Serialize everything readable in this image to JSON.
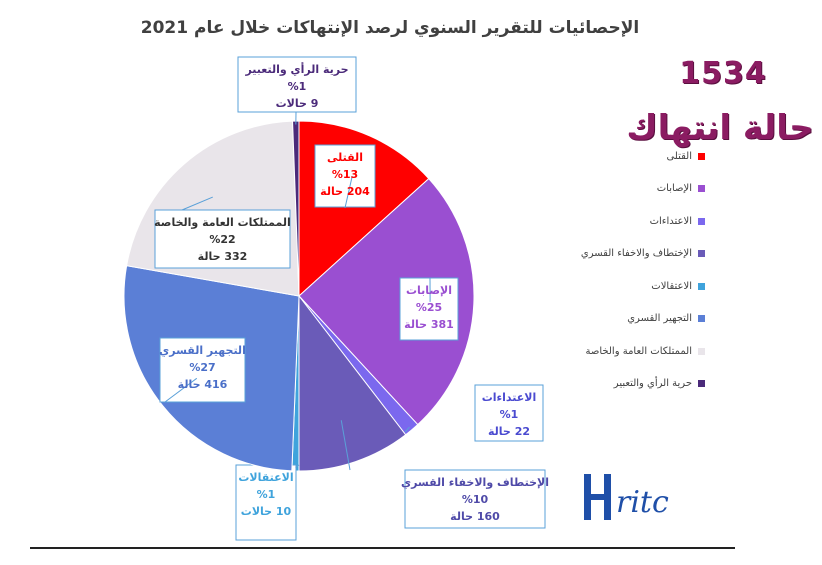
{
  "page": {
    "title": "الإحصائيات للتقرير السنوي لرصد الإنتهاكات خلال عام 2021",
    "total_count": "1534",
    "total_label": "حالة انتهاك",
    "logo_text": "ritc"
  },
  "chart_data": {
    "type": "pie",
    "title": "الإحصائيات للتقرير السنوي لرصد الإنتهاكات خلال عام 2021",
    "total": 1534,
    "legend_position": "right",
    "slices": [
      {
        "name": "القتلى",
        "label": "القتلى",
        "percent": "%13",
        "count": "204 حالة",
        "value": 204,
        "color": "#ff0000",
        "text_color": "#ff0000"
      },
      {
        "name": "الإصابات",
        "label": "الإصابات",
        "percent": "%25",
        "count": "381 حالة",
        "value": 381,
        "color": "#9a4fd1",
        "text_color": "#9a4fd1"
      },
      {
        "name": "الاعتداءات",
        "label": "الاعتداءات",
        "percent": "%1",
        "count": "22 حالة",
        "value": 22,
        "color": "#7b68ee",
        "text_color": "#4a4ad0"
      },
      {
        "name": "الإختطاف والاخفاء القسري",
        "label": "الإختطاف والاخفاء القسري",
        "percent": "%10",
        "count": "160 حالة",
        "value": 160,
        "color": "#6a5bb8",
        "text_color": "#4f4aa8"
      },
      {
        "name": "الاعتقالات",
        "label": "الاعتقالات",
        "percent": "%1",
        "count": "10 حالات",
        "value": 10,
        "color": "#3fa3dc",
        "text_color": "#3fa3dc"
      },
      {
        "name": "التجهير القسري",
        "label": "التجهير القسري",
        "percent": "%27",
        "count": "416 حالة",
        "value": 416,
        "color": "#5b7fd6",
        "text_color": "#4a6fc8"
      },
      {
        "name": "الممتلكات العامة والخاصة",
        "label": "الممتلكات العامة والخاصة",
        "percent": "%22",
        "count": "332 حالة",
        "value": 332,
        "color": "#e9e5ea",
        "text_color": "#333333"
      },
      {
        "name": "حرية الرأي والتعبير",
        "label": "حرية الرأي والتعبير",
        "percent": "%1",
        "count": "9 حالات",
        "value": 9,
        "color": "#4b2a7a",
        "text_color": "#4b2a7a"
      }
    ]
  }
}
